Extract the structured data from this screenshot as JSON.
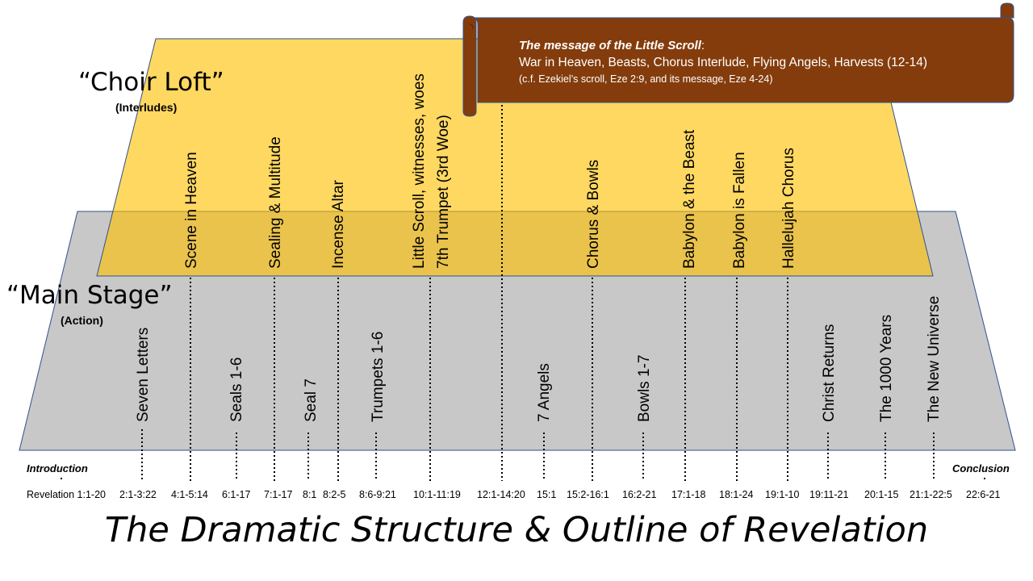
{
  "title": "The Dramatic Structure & Outline of Revelation",
  "choir_loft": {
    "label": "“Choir Loft”",
    "sublabel": "(Interludes)"
  },
  "main_stage": {
    "label": "“Main Stage”",
    "sublabel": "(Action)"
  },
  "scroll": {
    "title": "The message of the Little Scroll",
    "title_suffix": ":",
    "line": "War in Heaven, Beasts, Chorus Interlude, Flying Angels, Harvests (12-14)",
    "note": "(c.f. Ezekiel’s scroll, Eze 2:9, and its message, Eze 4-24)"
  },
  "endpoints": {
    "intro": "Introduction",
    "conclusion": "Conclusion"
  },
  "interludes": [
    {
      "label": "Scene in Heaven"
    },
    {
      "label": "Sealing & Multitude"
    },
    {
      "label": "Incense Altar"
    },
    {
      "label": "Little Scroll, witnesses, woes"
    },
    {
      "label": "7th Trumpet (3rd Woe)"
    },
    {
      "label": "Chorus & Bowls"
    },
    {
      "label": "Babylon & the Beast"
    },
    {
      "label": "Babylon is Fallen"
    },
    {
      "label": "Hallelujah Chorus"
    }
  ],
  "actions": [
    {
      "label": "Seven Letters"
    },
    {
      "label": "Seals 1-6"
    },
    {
      "label": "Seal 7"
    },
    {
      "label": "Trumpets 1-6"
    },
    {
      "label": "7 Angels"
    },
    {
      "label": "Bowls 1-7"
    },
    {
      "label": "Christ Returns"
    },
    {
      "label": "The 1000 Years"
    },
    {
      "label": "The New Universe"
    }
  ],
  "refs": [
    "Revelation 1:1-20",
    "2:1-3:22",
    "4:1-5:14",
    "6:1-17",
    "7:1-17",
    "8:1",
    "8:2-5",
    "8:6-9:21",
    "10:1-11:19",
    "12:1-14:20",
    "15:1",
    "15:2-16:1",
    "16:2-21",
    "17:1-18",
    "18:1-24",
    "19:1-10",
    "19:11-21",
    "20:1-15",
    "21:1-22:5",
    "22:6-21"
  ],
  "colors": {
    "loft": "#ffc000",
    "stage": "#c0c0c0",
    "scroll": "#843c0c",
    "outline": "#2f528f"
  }
}
